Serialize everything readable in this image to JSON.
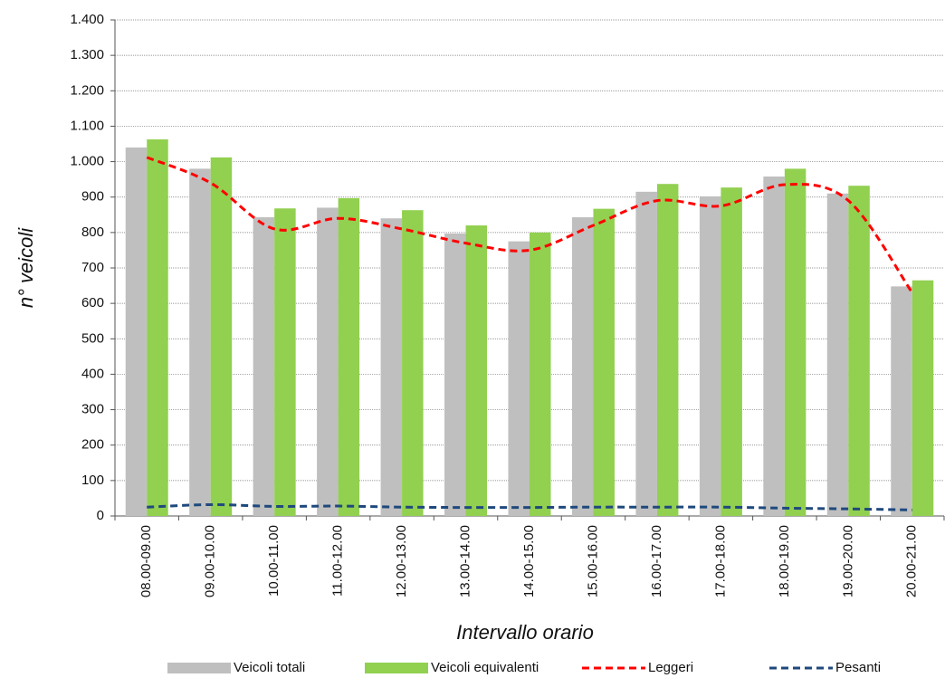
{
  "chart_data": {
    "type": "bar",
    "y_label": "n° veicoli",
    "x_label": "Intervallo orario",
    "categories": [
      "08.00-09.00",
      "09.00-10.00",
      "10.00-11.00",
      "11.00-12.00",
      "12.00-13.00",
      "13.00-14.00",
      "14.00-15.00",
      "15.00-16.00",
      "16.00-17.00",
      "17.00-18.00",
      "18.00-19.00",
      "19.00-20.00",
      "20.00-21.00"
    ],
    "series": [
      {
        "name": "Veicoli totali",
        "type": "bar",
        "color": "#bfbfbf",
        "values": [
          1040,
          980,
          843,
          870,
          840,
          797,
          775,
          843,
          915,
          902,
          958,
          910,
          648
        ]
      },
      {
        "name": "Veicoli equivalenti",
        "type": "bar",
        "color": "#92d050",
        "values": [
          1063,
          1012,
          868,
          897,
          863,
          820,
          800,
          867,
          937,
          927,
          980,
          932,
          665
        ]
      },
      {
        "name": "Leggeri",
        "type": "line",
        "color": "#ff0000",
        "values": [
          1012,
          940,
          810,
          840,
          810,
          770,
          750,
          820,
          890,
          875,
          935,
          890,
          630
        ]
      },
      {
        "name": "Pesanti",
        "type": "line",
        "color": "#1f497d",
        "values": [
          25,
          32,
          27,
          28,
          25,
          24,
          24,
          25,
          25,
          25,
          22,
          20,
          17
        ]
      }
    ],
    "ylim": [
      0,
      1400
    ],
    "yticks": [
      0,
      100,
      200,
      300,
      400,
      500,
      600,
      700,
      800,
      900,
      {
        "value": 1000,
        "label": "1.000"
      },
      {
        "value": 1100,
        "label": "1.100"
      },
      {
        "value": 1200,
        "label": "1.200"
      },
      {
        "value": 1300,
        "label": "1.300"
      },
      {
        "value": 1400,
        "label": "1.400"
      }
    ],
    "grid": true
  }
}
